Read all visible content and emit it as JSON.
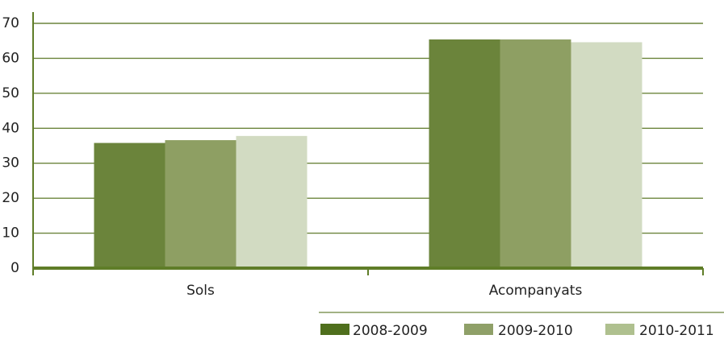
{
  "chart_data": {
    "type": "bar",
    "categories": [
      "Sols",
      "Acompanyats"
    ],
    "series": [
      {
        "name": "2008-2009",
        "values": [
          35.8,
          65.4
        ]
      },
      {
        "name": "2009-2010",
        "values": [
          36.6,
          65.4
        ]
      },
      {
        "name": "2010-2011",
        "values": [
          37.8,
          64.6
        ]
      }
    ],
    "title": "",
    "xlabel": "",
    "ylabel": "",
    "ylim": [
      0,
      70
    ],
    "yticks": [
      "0",
      "10",
      "20",
      "30",
      "40",
      "50",
      "60",
      "70"
    ],
    "grid": true,
    "legend_position": "bottom-right",
    "colors": {
      "series": [
        "#6b843b",
        "#8e9f63",
        "#d2dbc2"
      ],
      "legend": [
        "#4f6f1d",
        "#8fa068",
        "#afc08f"
      ],
      "grid": "#6b843b",
      "axis": "#5f7d28"
    }
  }
}
